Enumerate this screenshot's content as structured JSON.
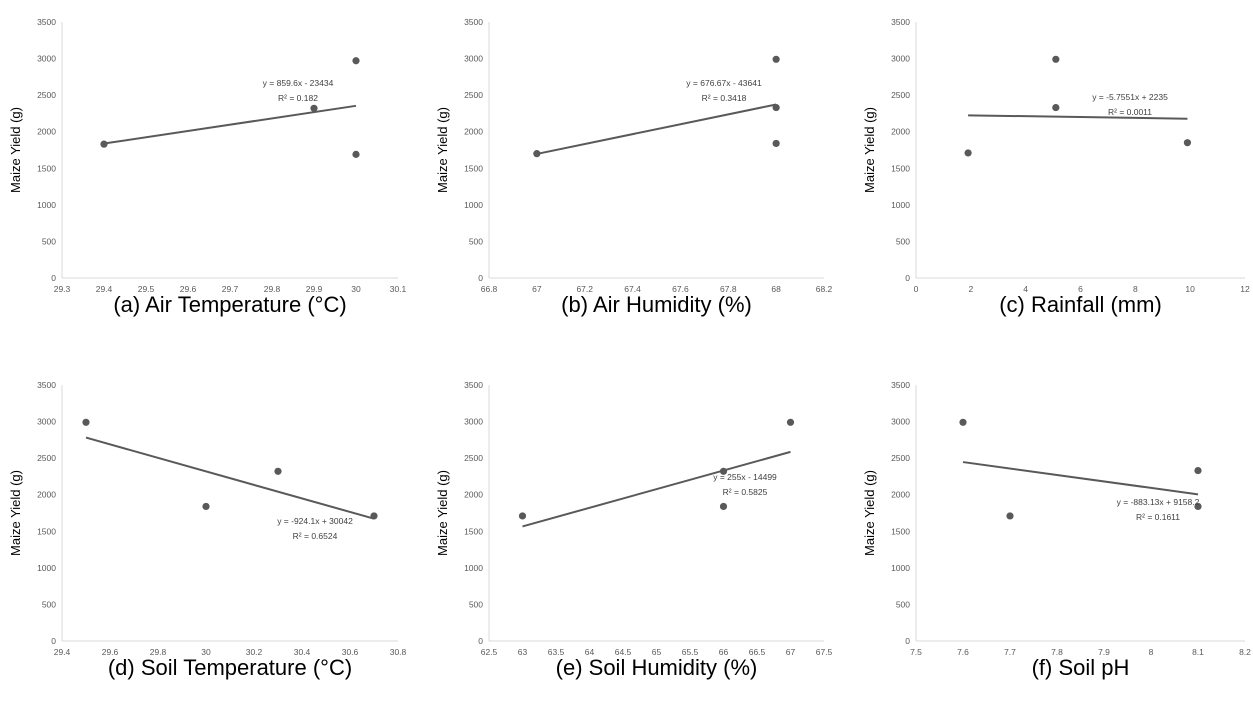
{
  "colors": {
    "axis": "#d9d9d9",
    "point": "#595959",
    "trend": "#595959",
    "text": "#595959"
  },
  "chart_data": [
    {
      "type": "scatter",
      "caption": "(a) Air Temperature (°C)",
      "ylabel": "Maize Yield (g)",
      "xlim": [
        29.3,
        30.1
      ],
      "ylim": [
        0,
        3500
      ],
      "x_ticks": [
        "29.3",
        "29.4",
        "29.5",
        "29.6",
        "29.7",
        "29.8",
        "29.9",
        "30",
        "30.1"
      ],
      "y_ticks": [
        "0",
        "500",
        "1000",
        "1500",
        "2000",
        "2500",
        "3000",
        "3500"
      ],
      "points": [
        {
          "x": 29.4,
          "y": 1830
        },
        {
          "x": 29.9,
          "y": 2320
        },
        {
          "x": 30,
          "y": 2970
        },
        {
          "x": 30,
          "y": 1690
        }
      ],
      "trendline": {
        "slope": 859.6,
        "intercept": -23434,
        "x_range": [
          29.4,
          30
        ]
      },
      "equation": "y = 859.6x - 23434",
      "r2": "R² = 0.182",
      "grid": false
    },
    {
      "type": "scatter",
      "caption": "(b) Air Humidity (%)",
      "ylabel": "Maize Yield (g)",
      "xlim": [
        66.8,
        68.2
      ],
      "ylim": [
        0,
        3500
      ],
      "x_ticks": [
        "66.8",
        "67",
        "67.2",
        "67.4",
        "67.6",
        "67.8",
        "68",
        "68.2"
      ],
      "y_ticks": [
        "0",
        "500",
        "1000",
        "1500",
        "2000",
        "2500",
        "3000",
        "3500"
      ],
      "points": [
        {
          "x": 67,
          "y": 1700
        },
        {
          "x": 68,
          "y": 2990
        },
        {
          "x": 68,
          "y": 2330
        },
        {
          "x": 68,
          "y": 1840
        }
      ],
      "trendline": {
        "slope": 676.67,
        "intercept": -43641,
        "x_range": [
          67,
          68
        ]
      },
      "equation": "y = 676.67x - 43641",
      "r2": "R² = 0.3418",
      "grid": false
    },
    {
      "type": "scatter",
      "caption": "(c) Rainfall (mm)",
      "ylabel": "Maize Yield (g)",
      "xlim": [
        0,
        12
      ],
      "ylim": [
        0,
        3500
      ],
      "x_ticks": [
        "0",
        "2",
        "4",
        "6",
        "8",
        "10",
        "12"
      ],
      "y_ticks": [
        "0",
        "500",
        "1000",
        "1500",
        "2000",
        "2500",
        "3000",
        "3500"
      ],
      "points": [
        {
          "x": 1.9,
          "y": 1710
        },
        {
          "x": 5.1,
          "y": 2990
        },
        {
          "x": 5.1,
          "y": 2330
        },
        {
          "x": 9.9,
          "y": 1850
        }
      ],
      "trendline": {
        "slope": -5.7551,
        "intercept": 2235,
        "x_range": [
          1.9,
          9.9
        ]
      },
      "equation": "y = -5.7551x + 2235",
      "r2": "R² = 0.0011",
      "grid": false
    },
    {
      "type": "scatter",
      "caption": "(d) Soil Temperature (°C)",
      "ylabel": "Maize Yield (g)",
      "xlim": [
        29.4,
        30.8
      ],
      "ylim": [
        0,
        3500
      ],
      "x_ticks": [
        "29.4",
        "29.6",
        "29.8",
        "30",
        "30.2",
        "30.4",
        "30.6",
        "30.8"
      ],
      "y_ticks": [
        "0",
        "500",
        "1000",
        "1500",
        "2000",
        "2500",
        "3000",
        "3500"
      ],
      "points": [
        {
          "x": 29.5,
          "y": 2990
        },
        {
          "x": 30,
          "y": 1840
        },
        {
          "x": 30.3,
          "y": 2320
        },
        {
          "x": 30.7,
          "y": 1710
        }
      ],
      "trendline": {
        "slope": -924.1,
        "intercept": 30042,
        "x_range": [
          29.5,
          30.7
        ]
      },
      "equation": "y = -924.1x + 30042",
      "r2": "R² = 0.6524",
      "grid": false
    },
    {
      "type": "scatter",
      "caption": "(e) Soil Humidity (%)",
      "ylabel": "Maize Yield (g)",
      "xlim": [
        62.5,
        67.5
      ],
      "ylim": [
        0,
        3500
      ],
      "x_ticks": [
        "62.5",
        "63",
        "63.5",
        "64",
        "64.5",
        "65",
        "65.5",
        "66",
        "66.5",
        "67",
        "67.5"
      ],
      "y_ticks": [
        "0",
        "500",
        "1000",
        "1500",
        "2000",
        "2500",
        "3000",
        "3500"
      ],
      "points": [
        {
          "x": 63,
          "y": 1710
        },
        {
          "x": 66,
          "y": 2320
        },
        {
          "x": 66,
          "y": 1840
        },
        {
          "x": 67,
          "y": 2990
        }
      ],
      "trendline": {
        "slope": 255,
        "intercept": -14499,
        "x_range": [
          63,
          67
        ]
      },
      "equation": "y = 255x - 14499",
      "r2": "R² = 0.5825",
      "grid": false
    },
    {
      "type": "scatter",
      "caption": "(f) Soil pH",
      "ylabel": "Maize Yield (g)",
      "xlim": [
        7.5,
        8.2
      ],
      "ylim": [
        0,
        3500
      ],
      "x_ticks": [
        "7.5",
        "7.6",
        "7.7",
        "7.8",
        "7.9",
        "8",
        "8.1",
        "8.2"
      ],
      "y_ticks": [
        "0",
        "500",
        "1000",
        "1500",
        "2000",
        "2500",
        "3000",
        "3500"
      ],
      "points": [
        {
          "x": 7.6,
          "y": 2990
        },
        {
          "x": 7.7,
          "y": 1710
        },
        {
          "x": 8.1,
          "y": 2330
        },
        {
          "x": 8.1,
          "y": 1840
        }
      ],
      "trendline": {
        "slope": -883.13,
        "intercept": 9158.2,
        "x_range": [
          7.6,
          8.1
        ]
      },
      "equation": "y = -883.13x + 9158.2",
      "r2": "R² = 0.1611",
      "grid": false
    }
  ]
}
